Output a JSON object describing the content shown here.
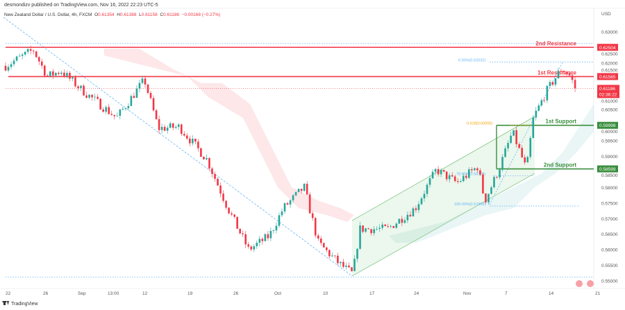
{
  "header": {
    "published": "desmondizv published on TradingView.com, Nov 16, 2022 22:23 UTC-5",
    "symbol": "New Zealand Dollar / U.S. Dollar, 4h, FXCM",
    "o_label": "O",
    "o": "0.61354",
    "h_label": "H",
    "h": "0.61388",
    "l_label": "L",
    "l": "0.61158",
    "c_label": "C",
    "c": "0.61186",
    "change": "−0.00168 (−0.27%)"
  },
  "footer": {
    "brand": "TradingView"
  },
  "colors": {
    "up": "#26a69a",
    "down": "#f23645",
    "resistance": "#f23645",
    "support": "#388e3c",
    "channel": "#81c784",
    "fib": "#64b5f6"
  },
  "chart_data": {
    "type": "candlestick",
    "title": "NZDUSD 4h",
    "currency": "USD",
    "ylim": [
      0.55,
      0.632
    ],
    "y_ticks": [
      "0.63000",
      "0.62500",
      "0.62000",
      "0.61500",
      "0.61000",
      "0.60500",
      "0.60000",
      "0.59500",
      "0.59000",
      "0.58500",
      "0.58000",
      "0.57500",
      "0.57000",
      "0.56500",
      "0.56000",
      "0.55500",
      "0.55000"
    ],
    "x_ticks": [
      "22",
      "26",
      "Sep",
      "13:00",
      "12",
      "19",
      "26",
      "Oct",
      "10",
      "17",
      "24",
      "Nov",
      "7",
      "14",
      "21"
    ],
    "close_path": [
      [
        0,
        0.6191
      ],
      [
        4,
        0.6242
      ],
      [
        6,
        0.6157
      ],
      [
        8,
        0.6175
      ],
      [
        11,
        0.6113
      ],
      [
        16,
        0.6024
      ],
      [
        20,
        0.6146
      ],
      [
        22,
        0.599
      ],
      [
        25,
        0.5995
      ],
      [
        29,
        0.589
      ],
      [
        32,
        0.5734
      ],
      [
        35,
        0.56
      ],
      [
        38,
        0.5645
      ],
      [
        40,
        0.5734
      ],
      [
        43,
        0.5801
      ],
      [
        45,
        0.5623
      ],
      [
        48,
        0.5556
      ],
      [
        50,
        0.5522
      ],
      [
        51,
        0.5667
      ],
      [
        55,
        0.5667
      ],
      [
        59,
        0.5734
      ],
      [
        62,
        0.5857
      ],
      [
        65,
        0.5815
      ],
      [
        68,
        0.5868
      ],
      [
        69,
        0.5756
      ],
      [
        71,
        0.5857
      ],
      [
        73,
        0.5979
      ],
      [
        75,
        0.5857
      ],
      [
        76,
        0.6024
      ],
      [
        78,
        0.6113
      ],
      [
        80,
        0.618
      ],
      [
        81,
        0.6169
      ],
      [
        82,
        0.6124
      ]
    ],
    "levels": [
      {
        "name": "2nd Resistance",
        "value": 0.62504,
        "label": "0.62504",
        "kind": "resistance"
      },
      {
        "name": "1st Resistance",
        "value": 0.61565,
        "label": "0.61565",
        "kind": "resistance"
      },
      {
        "name": "1st Support",
        "value": 0.59998,
        "label": "0.59998",
        "kind": "support"
      },
      {
        "name": "2nd Support",
        "value": 0.58599,
        "label": "0.58599",
        "kind": "support"
      }
    ],
    "last_price": {
      "value": 0.61186,
      "label": "0.61186",
      "countdown": "02:36:22"
    },
    "fib": [
      {
        "label": "0.00%(0.62032)",
        "value": 0.62032
      },
      {
        "label": "0.618(0.60005)",
        "value": 0.60005
      },
      {
        "label": "78.60%(0.58376)",
        "value": 0.58376
      },
      {
        "label": "100.00%(0.57406)",
        "value": 0.57406
      }
    ],
    "dotted_lows": [
      0.5512
    ]
  }
}
